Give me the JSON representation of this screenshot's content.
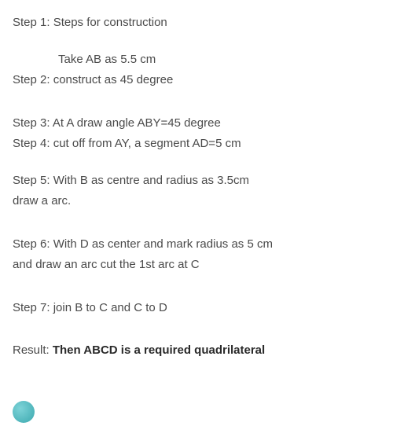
{
  "text_color": "#4a4a4a",
  "bold_color": "#2a2a2a",
  "background_color": "#ffffff",
  "font_size": 15,
  "circle_color": "#3ba8ae",
  "steps": {
    "step1_label": "Step 1: Steps for construction",
    "step1_sub": "Take AB as 5.5 cm",
    "step2": "Step 2: construct as 45 degree",
    "step3": " Step 3: At A draw angle ABY=45 degree",
    "step4": "Step 4: cut off from AY, a segment AD=5 cm",
    "step5_line1": "Step 5: With B as centre and radius as 3.5cm",
    "step5_line2": "draw a arc.",
    "step6_line1": "Step 6: With D as center and mark radius as 5 cm",
    "step6_line2": "and draw an arc cut the 1st arc at C",
    "step7": "Step 7: join B to C and C to D"
  },
  "result": {
    "label": "Result: ",
    "text": "Then ABCD is a required quadrilateral"
  }
}
